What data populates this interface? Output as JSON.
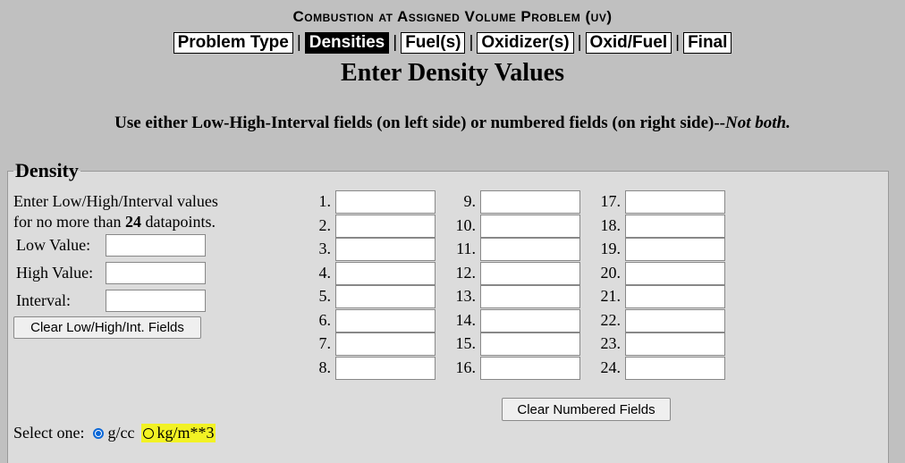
{
  "header": {
    "title": "Combustion at Assigned Volume Problem (uv)",
    "separator": "|",
    "tabs": [
      {
        "label": "Problem Type",
        "active": false
      },
      {
        "label": "Densities",
        "active": true
      },
      {
        "label": "Fuel(s)",
        "active": false
      },
      {
        "label": "Oxidizer(s)",
        "active": false
      },
      {
        "label": "Oxid/Fuel",
        "active": false
      },
      {
        "label": "Final",
        "active": false
      }
    ]
  },
  "main": {
    "section_title": "Enter Density Values",
    "instruction_text": "Use either Low-High-Interval fields (on left side) or numbered fields (on right side)--",
    "instruction_emphasis": "Not both."
  },
  "density": {
    "legend": "Density",
    "left_text_line1": "Enter Low/High/Interval values",
    "left_text_line2_prefix": "for no more than ",
    "left_text_max": "24",
    "left_text_line2_suffix": " datapoints.",
    "low_label": "Low Value:",
    "high_label": "High Value:",
    "interval_label": "Interval:",
    "low_value": "",
    "high_value": "",
    "interval_value": "",
    "clear_lhi_label": "Clear Low/High/Int. Fields",
    "clear_numbered_label": "Clear Numbered Fields",
    "numbered_labels": [
      "1.",
      "2.",
      "3.",
      "4.",
      "5.",
      "6.",
      "7.",
      "8.",
      "9.",
      "10.",
      "11.",
      "12.",
      "13.",
      "14.",
      "15.",
      "16.",
      "17.",
      "18.",
      "19.",
      "20.",
      "21.",
      "22.",
      "23.",
      "24."
    ],
    "numbered_values": [
      "",
      "",
      "",
      "",
      "",
      "",
      "",
      "",
      "",
      "",
      "",
      "",
      "",
      "",
      "",
      "",
      "",
      "",
      "",
      "",
      "",
      "",
      "",
      ""
    ],
    "select_label": "Select one:",
    "unit_options": [
      {
        "label": "g/cc",
        "checked": true
      },
      {
        "label": "kg/m**3",
        "checked": false
      }
    ],
    "highlight_color": "#f2f224",
    "radio_color": "#0a66d6"
  }
}
